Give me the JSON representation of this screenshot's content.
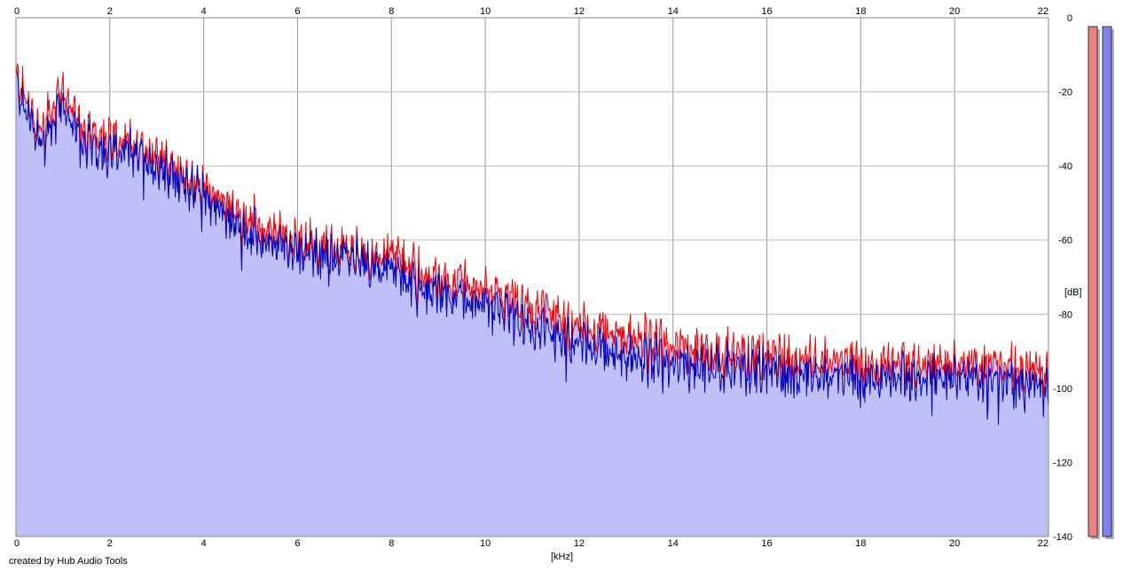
{
  "chart_data": {
    "type": "area",
    "xlabel": "[kHz]",
    "ylabel": "[dB]",
    "xlim": [
      0,
      22
    ],
    "ylim": [
      -140,
      0
    ],
    "x_ticks": [
      0,
      2,
      4,
      6,
      8,
      10,
      12,
      14,
      16,
      18,
      20,
      22
    ],
    "y_ticks": [
      0,
      -20,
      -40,
      -60,
      -80,
      -100,
      -120,
      -140
    ],
    "grid": true,
    "x": [
      0,
      0.5,
      1,
      1.5,
      2,
      2.5,
      3,
      3.5,
      4,
      4.5,
      5,
      5.5,
      6,
      6.5,
      7,
      7.5,
      8,
      8.5,
      9,
      9.5,
      10,
      10.5,
      11,
      11.5,
      12,
      12.5,
      13,
      13.5,
      14,
      14.5,
      15,
      15.5,
      16,
      16.5,
      17,
      17.5,
      18,
      18.5,
      19,
      19.5,
      20,
      20.5,
      21,
      21.5,
      22
    ],
    "series": [
      {
        "color": "#ff0000",
        "values": [
          -16,
          -30,
          -20,
          -30,
          -32,
          -34,
          -36,
          -42,
          -46,
          -50,
          -54,
          -58,
          -60,
          -62,
          -62,
          -64,
          -64,
          -68,
          -70,
          -72,
          -74,
          -76,
          -78,
          -80,
          -83,
          -84,
          -86,
          -87,
          -88,
          -89,
          -90,
          -91,
          -91,
          -92,
          -92,
          -92,
          -93,
          -93,
          -93,
          -93,
          -93,
          -93,
          -94,
          -94,
          -95
        ]
      },
      {
        "color": "#0000c0",
        "values": [
          -18,
          -34,
          -24,
          -34,
          -36,
          -36,
          -40,
          -44,
          -48,
          -54,
          -58,
          -62,
          -62,
          -64,
          -64,
          -66,
          -68,
          -72,
          -74,
          -76,
          -78,
          -80,
          -84,
          -86,
          -88,
          -89,
          -92,
          -92,
          -93,
          -94,
          -94,
          -95,
          -95,
          -96,
          -96,
          -96,
          -97,
          -97,
          -97,
          -97,
          -97,
          -97,
          -98,
          -98,
          -99
        ]
      }
    ],
    "meters": [
      {
        "color": "#f08080",
        "level": 1
      },
      {
        "color": "#8080f0",
        "level": 1
      }
    ]
  },
  "credit": "created by Hub Audio Tools",
  "fill_color": "#c0c0f8"
}
